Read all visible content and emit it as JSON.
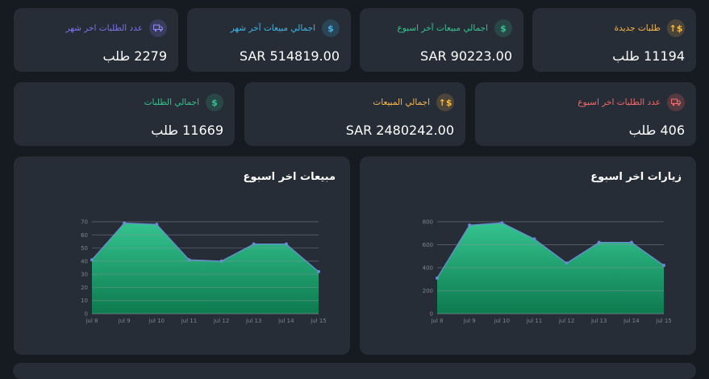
{
  "colors": {
    "background": "#161b22",
    "card": "#262d36",
    "area_top": "#34c38f",
    "area_bottom": "#0d7a4e",
    "line": "#6b8cd6",
    "grid": "#8a929c",
    "tick": "#7d8590"
  },
  "stats": [
    {
      "label": "طلبات جديدة",
      "value": "11194 طلب",
      "icon": "dollar-up-icon",
      "glyph": "$↑",
      "color": "#f7b84b"
    },
    {
      "label": "اجمالي مبيعات آخر اسبوع",
      "value": "SAR 90223.00",
      "icon": "dollar-circle-icon",
      "glyph": "$",
      "color": "#34c38f"
    },
    {
      "label": "اجمالي مبيعات آخر شهر",
      "value": "SAR 514819.00",
      "icon": "dollar-circle-icon",
      "glyph": "$",
      "color": "#3fb6e8"
    },
    {
      "label": "عدد الطلبات اخر شهر",
      "value": "2279 طلب",
      "icon": "truck-icon",
      "glyph": "🚚",
      "color": "#7b72e8"
    },
    {
      "label": "عدد الطلبات اخر اسبوع",
      "value": "406 طلب",
      "icon": "truck-icon",
      "glyph": "🚚",
      "color": "#f46a6a"
    },
    {
      "label": "اجمالي المبيعات",
      "value": "SAR 2480242.00",
      "icon": "dollar-up-icon",
      "glyph": "$↑",
      "color": "#f7b84b"
    },
    {
      "label": "اجمالي الطلبات",
      "value": "11669 طلب",
      "icon": "dollar-circle-icon",
      "glyph": "$",
      "color": "#34c38f"
    }
  ],
  "chart_data": [
    {
      "type": "area",
      "title": "زيارات اخر اسبوع",
      "x": [
        "jul 8",
        "jul 9",
        "jul 10",
        "jul 11",
        "jul 12",
        "jul 13",
        "jul 14",
        "jul 15"
      ],
      "values": [
        310,
        770,
        790,
        650,
        440,
        620,
        620,
        420
      ],
      "yticks": [
        0,
        200,
        400,
        600,
        800
      ],
      "ylim": [
        0,
        800
      ],
      "grid": true
    },
    {
      "type": "area",
      "title": "مبيعات اخر اسبوع",
      "x": [
        "jul 8",
        "jul 9",
        "jul 10",
        "jul 11",
        "jul 12",
        "jul 13",
        "jul 14",
        "jul 15"
      ],
      "values": [
        41,
        69,
        68,
        41,
        40,
        53,
        53,
        32
      ],
      "yticks": [
        0,
        10,
        20,
        30,
        40,
        50,
        60,
        70
      ],
      "ylim": [
        0,
        70
      ],
      "grid": true
    }
  ]
}
